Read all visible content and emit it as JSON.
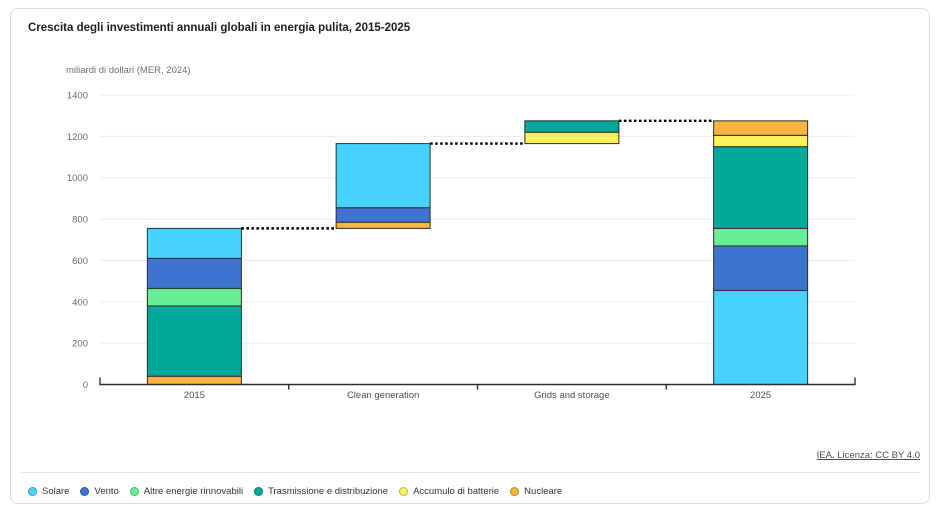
{
  "card": {
    "title": "Crescita degli investimenti annuali globali in energia pulita, 2015-2025",
    "unit_label": "miliardi di dollari (MER, 2024)",
    "attribution": "IEA. Licenza: CC BY 4.0"
  },
  "colors": {
    "solare": "#45D2FD",
    "vento": "#3F74CE",
    "altre_energie_rinnovabili": "#66EF96",
    "trasmissione_e_distribuzione": "#00A99C",
    "accumulo_di_batterie": "#FBF15A",
    "nucleare": "#FBB43F",
    "grid": "#EBEBEB",
    "axis": "#2D2D2D",
    "segment_stroke": "#2D2D2D",
    "connector": "#000000",
    "card_border": "#DCDCDC"
  },
  "legend": {
    "items": [
      {
        "key": "solare",
        "label": "Solare"
      },
      {
        "key": "vento",
        "label": "Vento"
      },
      {
        "key": "altre_energie_rinnovabili",
        "label": "Altre energie rinnovabili"
      },
      {
        "key": "trasmissione_e_distribuzione",
        "label": "Trasmissione e distribuzione"
      },
      {
        "key": "accumulo_di_batterie",
        "label": "Accumulo di batterie"
      },
      {
        "key": "nucleare",
        "label": "Nucleare"
      }
    ]
  },
  "chart_data": {
    "type": "bar",
    "subtype": "stacked-waterfall",
    "title": "Crescita degli investimenti annuali globali in energia pulita, 2015-2025",
    "ylabel": "miliardi di dollari (MER, 2024)",
    "ylim": [
      0,
      1400
    ],
    "yticks": [
      0,
      200,
      400,
      600,
      800,
      1000,
      1200,
      1400
    ],
    "grid": "horizontal",
    "legend_position": "bottom",
    "categories": [
      "2015",
      "Clean generation",
      "Grids and storage",
      "2025"
    ],
    "bars": [
      {
        "category": "2015",
        "base": 0,
        "total": 755,
        "segments": [
          {
            "key": "nucleare",
            "label": "Nucleare",
            "value": 40
          },
          {
            "key": "trasmissione_e_distribuzione",
            "label": "Trasmissione e distribuzione",
            "value": 340
          },
          {
            "key": "altre_energie_rinnovabili",
            "label": "Altre energie rinnovabili",
            "value": 85
          },
          {
            "key": "vento",
            "label": "Vento",
            "value": 145
          },
          {
            "key": "solare",
            "label": "Solare",
            "value": 145
          }
        ]
      },
      {
        "category": "Clean generation",
        "base": 755,
        "total": 1165,
        "segments": [
          {
            "key": "nucleare",
            "label": "Nucleare",
            "value": 30
          },
          {
            "key": "vento",
            "label": "Vento",
            "value": 70
          },
          {
            "key": "solare",
            "label": "Solare",
            "value": 310
          }
        ]
      },
      {
        "category": "Grids and storage",
        "base": 1165,
        "total": 1275,
        "segments": [
          {
            "key": "accumulo_di_batterie",
            "label": "Accumulo di batterie",
            "value": 55
          },
          {
            "key": "trasmissione_e_distribuzione",
            "label": "Trasmissione e distribuzione",
            "value": 55
          }
        ]
      },
      {
        "category": "2025",
        "base": 0,
        "total": 1275,
        "segments": [
          {
            "key": "solare",
            "label": "Solare",
            "value": 455
          },
          {
            "key": "vento",
            "label": "Vento",
            "value": 215
          },
          {
            "key": "altre_energie_rinnovabili",
            "label": "Altre energie rinnovabili",
            "value": 85
          },
          {
            "key": "trasmissione_e_distribuzione",
            "label": "Trasmissione e distribuzione",
            "value": 395
          },
          {
            "key": "accumulo_di_batterie",
            "label": "Accumulo di batterie",
            "value": 55
          },
          {
            "key": "nucleare",
            "label": "Nucleare",
            "value": 70
          }
        ]
      }
    ],
    "connectors": [
      {
        "from": "2015",
        "to": "Clean generation",
        "value": 755
      },
      {
        "from": "Clean generation",
        "to": "Grids and storage",
        "value": 1165
      },
      {
        "from": "Grids and storage",
        "to": "2025",
        "value": 1275
      }
    ]
  }
}
